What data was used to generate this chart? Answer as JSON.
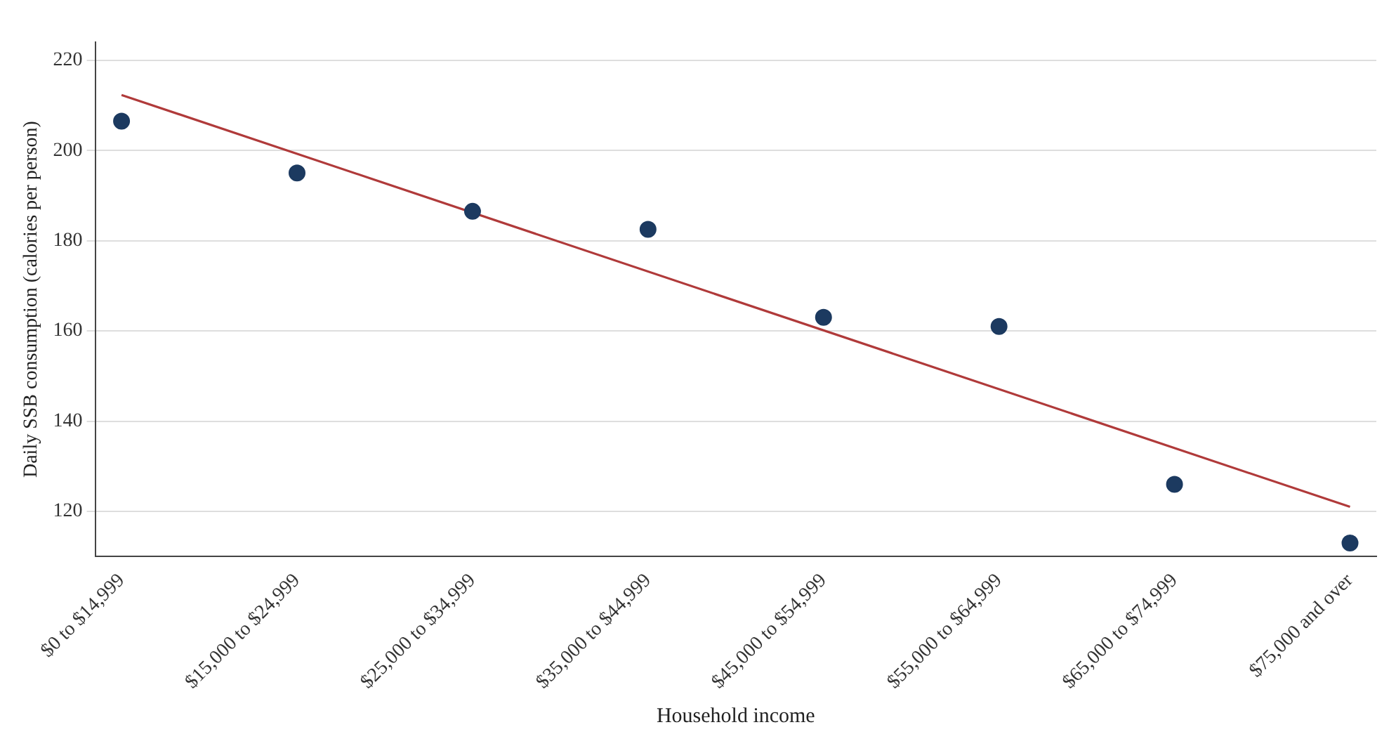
{
  "chart_data": {
    "type": "scatter",
    "xlabel": "Household income",
    "ylabel": "Daily SSB consumption (calories per person)",
    "categories": [
      "$0 to $14,999",
      "$15,000 to $24,999",
      "$25,000 to $34,999",
      "$35,000 to $44,999",
      "$45,000 to $54,999",
      "$55,000 to $64,999",
      "$65,000 to $74,999",
      "$75,000 and over"
    ],
    "series": [
      {
        "color": "#1c3a60",
        "marker": "circle",
        "values": [
          206.5,
          195,
          186.5,
          182.5,
          163,
          161,
          126,
          113
        ]
      },
      {
        "type": "line",
        "color": "#b03a3a",
        "marker": "none",
        "x": [
          "$0 to $14,999",
          "$75,000 and over"
        ],
        "values": [
          212.3,
          121
        ]
      }
    ],
    "ylim": [
      110,
      224
    ],
    "yticks": [
      120,
      140,
      160,
      180,
      200,
      220
    ],
    "grid": "y",
    "legend": false,
    "line_style": "solid"
  }
}
